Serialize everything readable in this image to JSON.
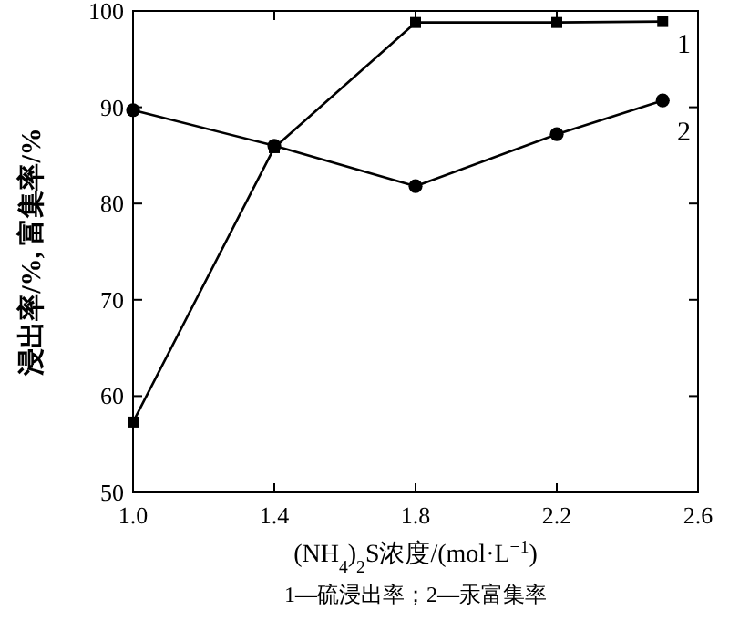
{
  "chart_data": {
    "type": "line",
    "xlabel": "(NH$_{4}$)$_{2}$S浓度/(mol·L$^{−1}$)",
    "ylabel": "浸出率/%, 富集率/%",
    "annotations": [
      "1—硫浸出率；2—汞富集率"
    ],
    "xlim": [
      1.0,
      2.6
    ],
    "xticks": [
      {
        "value": 1.0,
        "label": "1.0"
      },
      {
        "value": 1.4,
        "label": "1.4"
      },
      {
        "value": 1.8,
        "label": "1.8"
      },
      {
        "value": 2.2,
        "label": "2.2"
      },
      {
        "value": 2.6,
        "label": "2.6"
      }
    ],
    "ylim": [
      50,
      100
    ],
    "yticks": [
      50,
      60,
      70,
      80,
      90,
      100
    ],
    "grid": false,
    "legend": "right",
    "line_style": "solid",
    "series": [
      {
        "name": "1",
        "color": "#000000",
        "marker": "square",
        "x": [
          1.0,
          1.4,
          1.8,
          2.2,
          2.5
        ],
        "values": [
          57.3,
          85.8,
          98.8,
          98.8,
          98.9
        ]
      },
      {
        "name": "2",
        "color": "#000000",
        "marker": "circle",
        "x": [
          1.0,
          1.4,
          1.8,
          2.2,
          2.5
        ],
        "values": [
          89.7,
          86.0,
          81.8,
          87.2,
          90.7
        ]
      }
    ]
  }
}
